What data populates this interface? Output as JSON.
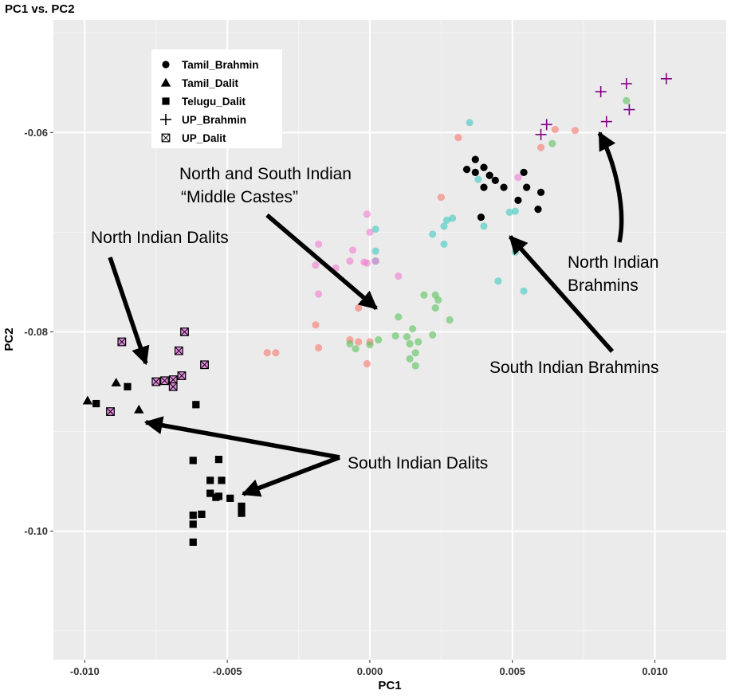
{
  "chart_data": {
    "type": "scatter",
    "title": "PC1 vs. PC2",
    "xlabel": "PC1",
    "ylabel": "PC2",
    "xlim": [
      -0.0111,
      0.0125
    ],
    "ylim": [
      -0.1129,
      -0.0487
    ],
    "x_ticks": [
      -0.01,
      -0.005,
      0.0,
      0.005,
      0.01
    ],
    "x_tick_labels": [
      "-0.010",
      "-0.005",
      "0.000",
      "0.005",
      "0.010"
    ],
    "y_ticks": [
      -0.06,
      -0.08,
      -0.1
    ],
    "y_tick_labels": [
      "-0.06",
      "-0.08",
      "-0.10"
    ],
    "grid": true,
    "legend_position": "top-left",
    "legend": [
      {
        "label": "Tamil_Brahmin",
        "shape": "circle"
      },
      {
        "label": "Tamil_Dalit",
        "shape": "triangle"
      },
      {
        "label": "Telugu_Dalit",
        "shape": "square"
      },
      {
        "label": "UP_Brahmin",
        "shape": "plus"
      },
      {
        "label": "UP_Dalit",
        "shape": "boxed-x"
      }
    ],
    "series": [
      {
        "label": "Tamil_Brahmin",
        "shape": "circle",
        "color": "#000000",
        "points": [
          [
            0.0037,
            -0.0627
          ],
          [
            0.0034,
            -0.0637
          ],
          [
            0.0037,
            -0.064
          ],
          [
            0.004,
            -0.0635
          ],
          [
            0.0042,
            -0.0643
          ],
          [
            0.004,
            -0.0655
          ],
          [
            0.0044,
            -0.0648
          ],
          [
            0.0047,
            -0.0655
          ],
          [
            0.0054,
            -0.064
          ],
          [
            0.0055,
            -0.0655
          ],
          [
            0.006,
            -0.066
          ],
          [
            0.0052,
            -0.0668
          ],
          [
            0.0059,
            -0.0677
          ],
          [
            0.0039,
            -0.0685
          ]
        ]
      },
      {
        "label": "Tamil_Dalit",
        "shape": "triangle",
        "color": "#000000",
        "points": [
          [
            -0.0099,
            -0.0869
          ],
          [
            -0.0089,
            -0.0851
          ],
          [
            -0.0081,
            -0.0878
          ]
        ]
      },
      {
        "label": "Telugu_Dalit",
        "shape": "square",
        "color": "#000000",
        "points": [
          [
            -0.0096,
            -0.0872
          ],
          [
            -0.0085,
            -0.0855
          ],
          [
            -0.0061,
            -0.0873
          ],
          [
            -0.0062,
            -0.0929
          ],
          [
            -0.0053,
            -0.0928
          ],
          [
            -0.0056,
            -0.0949
          ],
          [
            -0.0052,
            -0.0949
          ],
          [
            -0.0056,
            -0.0962
          ],
          [
            -0.0054,
            -0.0966
          ],
          [
            -0.0053,
            -0.0965
          ],
          [
            -0.0049,
            -0.0967
          ],
          [
            -0.0045,
            -0.0975
          ],
          [
            -0.0045,
            -0.0982
          ],
          [
            -0.0062,
            -0.0984
          ],
          [
            -0.0059,
            -0.0983
          ],
          [
            -0.0062,
            -0.0993
          ],
          [
            -0.0062,
            -0.1011
          ]
        ]
      },
      {
        "label": "UP_Brahmin",
        "shape": "plus",
        "color": "#800080",
        "points": [
          [
            0.0104,
            -0.0546
          ],
          [
            0.009,
            -0.0551
          ],
          [
            0.0081,
            -0.0559
          ],
          [
            0.0091,
            -0.0577
          ],
          [
            0.0083,
            -0.0589
          ],
          [
            0.0062,
            -0.0592
          ],
          [
            0.006,
            -0.0602
          ]
        ]
      },
      {
        "label": "UP_Dalit",
        "shape": "boxed-x",
        "color": "#E58CE0",
        "points": [
          [
            -0.0087,
            -0.081
          ],
          [
            -0.0065,
            -0.08
          ],
          [
            -0.0067,
            -0.0819
          ],
          [
            -0.0058,
            -0.0833
          ],
          [
            -0.0066,
            -0.0844
          ],
          [
            -0.0069,
            -0.0848
          ],
          [
            -0.0072,
            -0.0849
          ],
          [
            -0.0075,
            -0.085
          ],
          [
            -0.0069,
            -0.0855
          ],
          [
            -0.0091,
            -0.088
          ]
        ]
      },
      {
        "label": "Middle castes (red)",
        "shape": "circle",
        "color": "#F8766D",
        "points": [
          [
            0.0031,
            -0.0605
          ],
          [
            0.0025,
            -0.0665
          ],
          [
            0.0072,
            -0.0598
          ],
          [
            0.0065,
            -0.0597
          ],
          [
            0.006,
            -0.0615
          ],
          [
            -0.0004,
            -0.0776
          ],
          [
            -0.0019,
            -0.0793
          ],
          [
            -0.0018,
            -0.0816
          ],
          [
            -0.0036,
            -0.0821
          ],
          [
            -0.0033,
            -0.0821
          ],
          [
            -0.0007,
            -0.0808
          ],
          [
            -0.0004,
            -0.081
          ],
          [
            0.0,
            -0.081
          ],
          [
            -0.0001,
            -0.0832
          ]
        ]
      },
      {
        "label": "Middle castes (green)",
        "shape": "circle",
        "color": "#5CC25C",
        "points": [
          [
            0.009,
            -0.0568
          ],
          [
            0.0064,
            -0.0611
          ],
          [
            0.001,
            -0.0785
          ],
          [
            0.0019,
            -0.0763
          ],
          [
            0.0023,
            -0.0763
          ],
          [
            0.0024,
            -0.0768
          ],
          [
            0.0023,
            -0.0776
          ],
          [
            0.0015,
            -0.0797
          ],
          [
            0.0022,
            -0.0803
          ],
          [
            0.0028,
            -0.0788
          ],
          [
            0.0009,
            -0.0804
          ],
          [
            0.0003,
            -0.0808
          ],
          [
            0.0013,
            -0.0805
          ],
          [
            0.0014,
            -0.0812
          ],
          [
            0.0017,
            -0.081
          ],
          [
            0.0016,
            -0.0821
          ],
          [
            0.0014,
            -0.0827
          ],
          [
            0.0016,
            -0.0834
          ],
          [
            -0.0007,
            -0.0812
          ],
          [
            -0.0005,
            -0.0817
          ],
          [
            0.0,
            -0.0813
          ]
        ]
      },
      {
        "label": "Middle castes (teal)",
        "shape": "circle",
        "color": "#3FC9C0",
        "points": [
          [
            0.0038,
            -0.0647
          ],
          [
            0.0051,
            -0.0679
          ],
          [
            0.004,
            -0.0694
          ],
          [
            0.0029,
            -0.0686
          ],
          [
            0.0027,
            -0.0688
          ],
          [
            0.0049,
            -0.068
          ],
          [
            0.0026,
            -0.0694
          ],
          [
            0.0022,
            -0.0702
          ],
          [
            0.0026,
            -0.0712
          ],
          [
            0.0051,
            -0.072
          ],
          [
            0.0045,
            -0.0749
          ],
          [
            0.0054,
            -0.0759
          ],
          [
            0.0002,
            -0.0697
          ],
          [
            0.0002,
            -0.0719
          ],
          [
            0.0002,
            -0.0729
          ],
          [
            0.0035,
            -0.059
          ]
        ]
      },
      {
        "label": "Middle castes (pink)",
        "shape": "circle",
        "color": "#F27BD1",
        "points": [
          [
            0.0052,
            -0.0645
          ],
          [
            -0.0001,
            -0.0682
          ],
          [
            0.0,
            -0.07
          ],
          [
            -0.0001,
            -0.0731
          ],
          [
            -0.0006,
            -0.0718
          ],
          [
            -0.0007,
            -0.0729
          ],
          [
            -0.0012,
            -0.0736
          ],
          [
            -0.0018,
            -0.0712
          ],
          [
            -0.0019,
            -0.0733
          ],
          [
            -0.0002,
            -0.073
          ],
          [
            0.0002,
            -0.0729
          ],
          [
            0.001,
            -0.0744
          ],
          [
            -0.0018,
            -0.0762
          ]
        ]
      }
    ],
    "annotations": [
      {
        "lines": [
          "North and South Indian",
          "“Middle Castes”"
        ]
      },
      {
        "lines": [
          "North Indian Dalits"
        ]
      },
      {
        "lines": [
          "North Indian",
          "Brahmins"
        ]
      },
      {
        "lines": [
          "South Indian Brahmins"
        ]
      },
      {
        "lines": [
          "South Indian Dalits"
        ]
      }
    ],
    "colors": {
      "panel": "#EBEBEB",
      "grid_major": "#FFFFFF",
      "grid_minor": "#F5F5F5"
    }
  }
}
